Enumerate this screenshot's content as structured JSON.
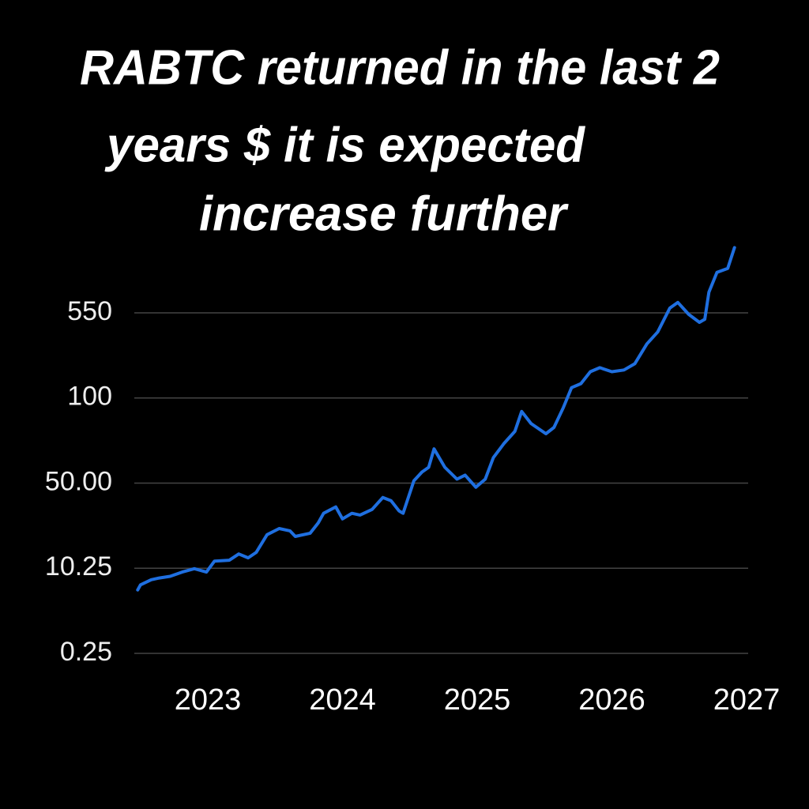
{
  "chart_data": {
    "type": "line",
    "title": [
      "RABTC returned in the last 2",
      "years $ it is expected",
      "increase further"
    ],
    "x": [
      2022.48,
      2022.5,
      2022.58,
      2022.64,
      2022.72,
      2022.81,
      2022.9,
      2022.99,
      2023.05,
      2023.16,
      2023.23,
      2023.3,
      2023.36,
      2023.44,
      2023.53,
      2023.61,
      2023.65,
      2023.76,
      2023.82,
      2023.86,
      2023.95,
      2024.0,
      2024.07,
      2024.13,
      2024.22,
      2024.3,
      2024.36,
      2024.42,
      2024.45,
      2024.53,
      2024.59,
      2024.64,
      2024.68,
      2024.76,
      2024.85,
      2024.91,
      2024.99,
      2025.06,
      2025.12,
      2025.2,
      2025.28,
      2025.33,
      2025.4,
      2025.51,
      2025.57,
      2025.64,
      2025.7,
      2025.77,
      2025.84,
      2025.91,
      2026.0,
      2026.09,
      2026.17,
      2026.26,
      2026.34,
      2026.43,
      2026.49,
      2026.57,
      2026.65,
      2026.69,
      2026.72,
      2026.78,
      2026.86,
      2026.91
    ],
    "series": [
      {
        "color": "#1f6fe0",
        "values": [
          7.7,
          8.3,
          8.9,
          9.1,
          9.3,
          9.8,
          10.2,
          9.8,
          13.6,
          14.0,
          16.9,
          15.1,
          17.7,
          25.9,
          28.8,
          27.7,
          25.1,
          26.6,
          31.4,
          35.9,
          38.9,
          33.3,
          35.9,
          35.1,
          37.7,
          43.3,
          41.8,
          37.0,
          35.9,
          51.4,
          56.5,
          59.3,
          70.1,
          59.3,
          52.3,
          54.7,
          48.1,
          52.3,
          65.0,
          73.4,
          80.4,
          92.1,
          85.0,
          79.0,
          82.7,
          94.4,
          154.7,
          176,
          239,
          260,
          239,
          248,
          281,
          386,
          449,
          575,
          605,
          542,
          500,
          516,
          659,
          764,
          785,
          895
        ]
      }
    ],
    "xlim": [
      2022.47,
      2027.01
    ],
    "xticks": [
      2023,
      2024,
      2025,
      2026,
      2027
    ],
    "ylim": [
      0.25,
      900
    ],
    "yticks": [
      0.25,
      10.25,
      {
        "value": 50,
        "label": "50.00"
      },
      100,
      550
    ],
    "grid": true
  }
}
